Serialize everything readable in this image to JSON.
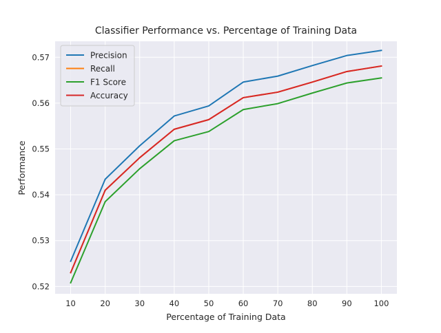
{
  "chart_data": {
    "type": "line",
    "title": "Classifier Performance vs. Percentage of Training Data",
    "xlabel": "Percentage of Training Data",
    "ylabel": "Performance",
    "x": [
      10,
      20,
      30,
      40,
      50,
      60,
      70,
      80,
      90,
      100
    ],
    "x_ticks": [
      "10",
      "20",
      "30",
      "40",
      "50",
      "60",
      "70",
      "80",
      "90",
      "100"
    ],
    "y_ticks": [
      "0.52",
      "0.53",
      "0.54",
      "0.55",
      "0.56",
      "0.57"
    ],
    "y_tick_values": [
      0.52,
      0.53,
      0.54,
      0.55,
      0.56,
      0.57
    ],
    "xlim": [
      5.5,
      104.5
    ],
    "ylim": [
      0.5184,
      0.5735
    ],
    "grid": true,
    "legend_position": "top-left",
    "style": {
      "background": "#eaeaf2",
      "grid_color": "#ffffff"
    },
    "series": [
      {
        "name": "Precision",
        "color": "#1f77b4",
        "values": [
          0.5255,
          0.5434,
          0.5507,
          0.5572,
          0.5594,
          0.5646,
          0.5659,
          0.5682,
          0.5704,
          0.5715
        ]
      },
      {
        "name": "Recall",
        "color": "#ff7f0e",
        "values": [
          0.523,
          0.541,
          0.5481,
          0.5543,
          0.5564,
          0.5612,
          0.5624,
          0.5646,
          0.5669,
          0.5681
        ]
      },
      {
        "name": "F1 Score",
        "color": "#2ca02c",
        "values": [
          0.5208,
          0.5385,
          0.5457,
          0.5518,
          0.5538,
          0.5586,
          0.5599,
          0.5622,
          0.5644,
          0.5655
        ]
      },
      {
        "name": "Accuracy",
        "color": "#d62728",
        "values": [
          0.523,
          0.541,
          0.5481,
          0.5543,
          0.5564,
          0.5612,
          0.5624,
          0.5646,
          0.5669,
          0.5681
        ]
      }
    ]
  }
}
